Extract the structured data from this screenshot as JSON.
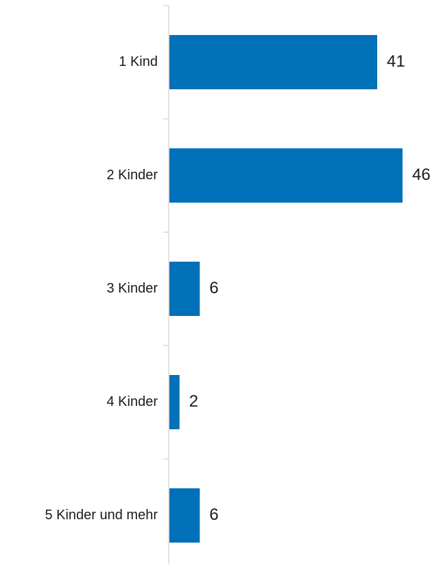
{
  "chart_data": {
    "type": "bar",
    "orientation": "horizontal",
    "categories": [
      "1 Kind",
      "2 Kinder",
      "3 Kinder",
      "4 Kinder",
      "5 Kinder und mehr"
    ],
    "values": [
      41,
      46,
      6,
      2,
      6
    ],
    "data_labels": [
      "41",
      "46",
      "6",
      "2",
      "6"
    ],
    "title": "",
    "xlabel": "",
    "ylabel": "",
    "xlim": [
      0,
      46
    ],
    "grid": false,
    "legend": "none",
    "colors": {
      "bar": "#0070b8",
      "axis": "#d9d9d9",
      "text": "#1a1a1a"
    }
  }
}
